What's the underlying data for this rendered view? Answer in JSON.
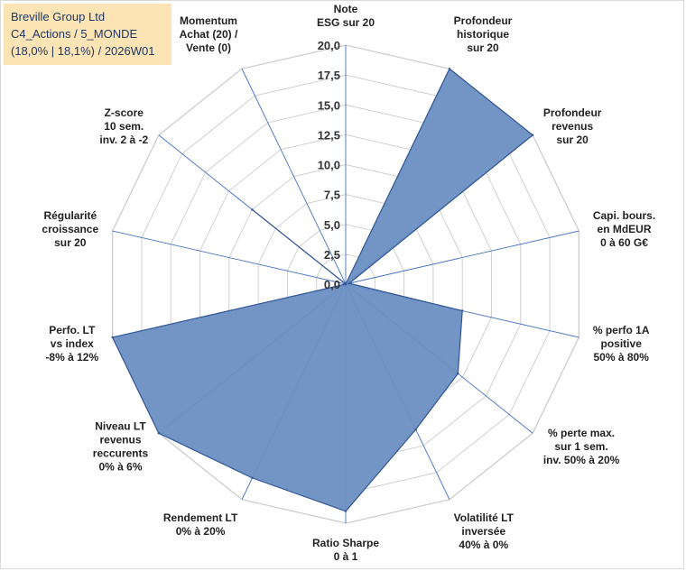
{
  "title_lines": [
    "Breville Group Ltd",
    "C4_Actions / 5_MONDE",
    "(18,0% | 18,1%) / 2026W01"
  ],
  "chart_data": {
    "type": "radar",
    "axes": [
      [
        "Note",
        "ESG sur 20"
      ],
      [
        "Profondeur",
        "historique",
        "sur 20"
      ],
      [
        "Profondeur",
        "revenus",
        "sur 20"
      ],
      [
        "Capi. bours.",
        "en MdEUR",
        "0 à 60 G€"
      ],
      [
        "% perfo 1A",
        "positive",
        "50% à 80%"
      ],
      [
        "% perte max.",
        "sur 1 sem.",
        "inv. 50% à 20%"
      ],
      [
        "Volatilité LT",
        "inversée",
        "40% à 0%"
      ],
      [
        "Ratio Sharpe",
        "0 à 1"
      ],
      [
        "Rendement LT",
        "0% à 20%"
      ],
      [
        "Niveau LT",
        "revenus",
        "reccurents",
        "0% à 6%"
      ],
      [
        "Perfo. LT",
        "vs index",
        "-8% à 12%"
      ],
      [
        "Régularité",
        "croissance",
        "sur 20"
      ],
      [
        "Z-score",
        "10 sem.",
        "inv. 2 à -2"
      ],
      [
        "Momentum",
        "Achat (20) /",
        "Vente (0)"
      ]
    ],
    "values": [
      0,
      20,
      20,
      0.3,
      10,
      12,
      13.5,
      19,
      18,
      20,
      20,
      0,
      10,
      0
    ],
    "rmin": 0,
    "rmax": 20,
    "ticks": [
      "0,0",
      "2,5",
      "5,0",
      "7,5",
      "10,0",
      "12,5",
      "15,0",
      "17,5",
      "20,0"
    ],
    "tick_values": [
      0,
      2.5,
      5,
      7.5,
      10,
      12.5,
      15,
      17.5,
      20
    ],
    "fill_color": "#6b8fc2",
    "stroke_color": "#2f5597",
    "grid_color": "#d0d0d0",
    "spoke_color": "#4472c4"
  }
}
